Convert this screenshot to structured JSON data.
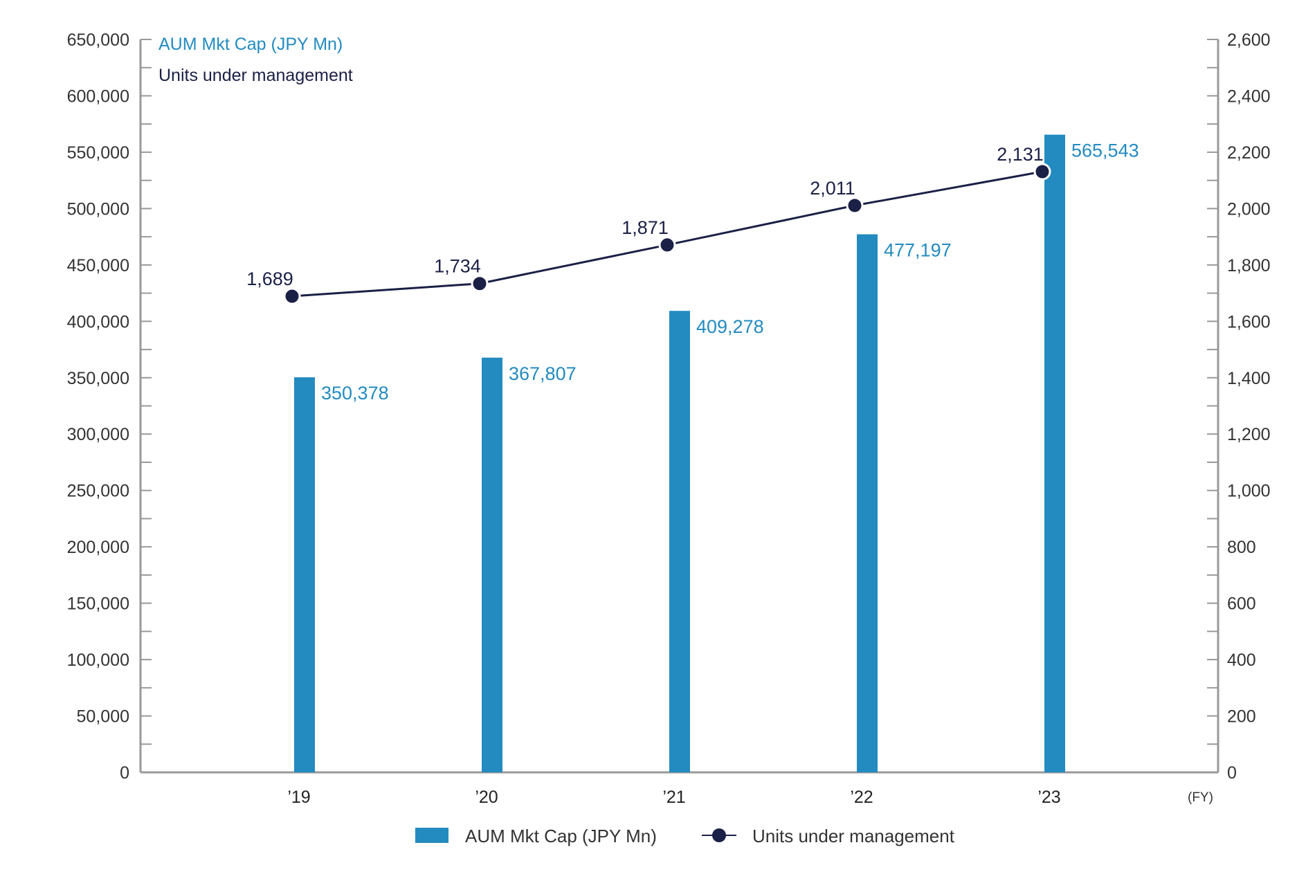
{
  "chart_data": {
    "type": "bar",
    "categories": [
      "’19",
      "’20",
      "’21",
      "’22",
      "’23"
    ],
    "x_unit": "(FY)",
    "series": [
      {
        "name": "AUM Mkt Cap (JPY Mn)",
        "type": "bar",
        "axis": "left",
        "color": "#238bc0",
        "values": [
          350378,
          367807,
          409278,
          477197,
          565543
        ],
        "labels": [
          "350,378",
          "367,807",
          "409,278",
          "477,197",
          "565,543"
        ]
      },
      {
        "name": "Units under management",
        "type": "line",
        "axis": "right",
        "color": "#1b2046",
        "values": [
          1689,
          1734,
          1871,
          2011,
          2131
        ],
        "labels": [
          "1,689",
          "1,734",
          "1,871",
          "2,011",
          "2,131"
        ]
      }
    ],
    "y_left": {
      "title": "AUM Mkt Cap (JPY Mn)",
      "ylim": [
        0,
        650000
      ],
      "ticks": [
        "0",
        "50,000",
        "100,000",
        "150,000",
        "200,000",
        "250,000",
        "300,000",
        "350,000",
        "400,000",
        "450,000",
        "500,000",
        "550,000",
        "600,000",
        "650,000"
      ]
    },
    "y_right": {
      "title": "Units under management",
      "ylim": [
        0,
        2600
      ],
      "ticks": [
        "0",
        "200",
        "400",
        "600",
        "800",
        "1,000",
        "1,200",
        "1,400",
        "1,600",
        "1,800",
        "2,000",
        "2,200",
        "2,400",
        "2,600"
      ]
    },
    "grid": false,
    "legend": {
      "position": "bottom",
      "items": [
        "AUM Mkt Cap (JPY Mn)",
        "Units under management"
      ]
    },
    "colors": {
      "bar": "#238bc0",
      "line": "#1b2046",
      "axis": "#999999"
    }
  }
}
